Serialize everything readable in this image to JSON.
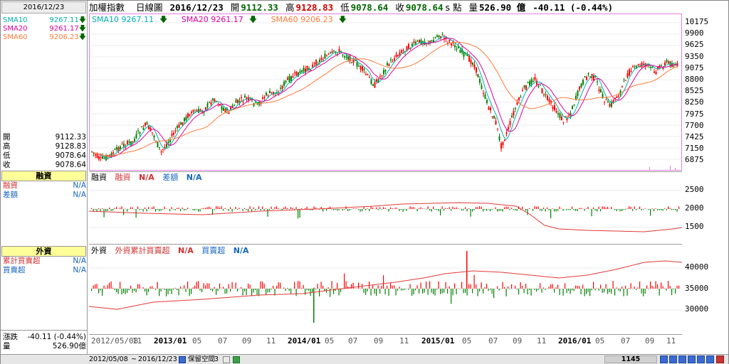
{
  "left_panel": {
    "date": "2016/12/23",
    "sma": [
      {
        "label": "SMA10",
        "value": "9267.11",
        "color": "#00b0b0"
      },
      {
        "label": "SMA20",
        "value": "9261.17",
        "color": "#e000a0"
      },
      {
        "label": "SMA60",
        "value": "9206.23",
        "color": "#ff7a3a"
      }
    ],
    "ohlc": [
      {
        "label": "開",
        "value": "9112.33"
      },
      {
        "label": "高",
        "value": "9128.83"
      },
      {
        "label": "低",
        "value": "9078.64"
      },
      {
        "label": "收",
        "value": "9078.64"
      }
    ],
    "margin": {
      "title": "融資",
      "rows": [
        {
          "label": "融資",
          "value": "N/A"
        },
        {
          "label": "差額",
          "value": "N/A"
        }
      ]
    },
    "foreign": {
      "title": "外資",
      "rows": [
        {
          "label": "累計買賣超",
          "value": "N/A"
        },
        {
          "label": "買賣超",
          "value": "N/A"
        }
      ]
    },
    "change": {
      "label": "漲跌",
      "value": "-40.11 (-0.44%)"
    },
    "volume": {
      "label": "量",
      "value": "526.90億"
    }
  },
  "header": {
    "index_name": "加權指數",
    "chart_type": "日線圖",
    "date": "2016/12/23",
    "open_label": "開",
    "open": "9112.33",
    "high_label": "高",
    "high": "9128.83",
    "low_label": "低",
    "low": "9078.64",
    "close_label": "收",
    "close": "9078.64",
    "close_unit": "s 點",
    "volume_label": "量",
    "volume": "526.90 億",
    "change": "-40.11 (-0.44%)"
  },
  "main_panel": {
    "legend": [
      {
        "text": "SMA10 9267.11",
        "color": "#00b0b0"
      },
      {
        "text": "SMA20 9261.17",
        "color": "#e000a0"
      },
      {
        "text": "SMA60 9206.23",
        "color": "#ff7a3a"
      }
    ],
    "down_arrow": "🡇",
    "y_ticks": [
      "10175",
      "9900",
      "9625",
      "9350",
      "9075",
      "8800",
      "8525",
      "8250",
      "7975",
      "7700",
      "7425",
      "7150",
      "6875"
    ]
  },
  "margin_panel": {
    "title": "融資",
    "legend": [
      {
        "label": "融資",
        "value": "N/A",
        "color": "#d32f2f"
      },
      {
        "label": "差額",
        "value": "N/A",
        "color": "#1565c0"
      }
    ],
    "y_ticks": [
      "2500",
      "2000",
      "1500"
    ]
  },
  "foreign_panel": {
    "title": "外資",
    "legend": [
      {
        "label": "外資累計買賣超",
        "value": "N/A",
        "color": "#d32f2f"
      },
      {
        "label": "買賣超",
        "value": "N/A",
        "color": "#1565c0"
      }
    ],
    "y_ticks": [
      "40000",
      "35000",
      "30000"
    ]
  },
  "x_axis": {
    "labels": [
      "2012/05/08",
      "11",
      "2013/01",
      "05",
      "07",
      "09",
      "11",
      "2014/01",
      "05",
      "07",
      "09",
      "11",
      "2015/01",
      "05",
      "07",
      "09",
      "11",
      "2016/01",
      "05",
      "07",
      "09",
      "11"
    ]
  },
  "status_bar": {
    "start_date": "2012/05/08",
    "tilde": "~",
    "end_date": "2016/12/23",
    "space_label": "保留空間",
    "space_value": "3",
    "scroll_value": "1145"
  },
  "colors": {
    "up": "#ff0000",
    "down": "#008000",
    "sma10": "#00b0b0",
    "sma20": "#e000a0",
    "sma60": "#ff7a3a",
    "panel_border": "#e080e0"
  }
}
